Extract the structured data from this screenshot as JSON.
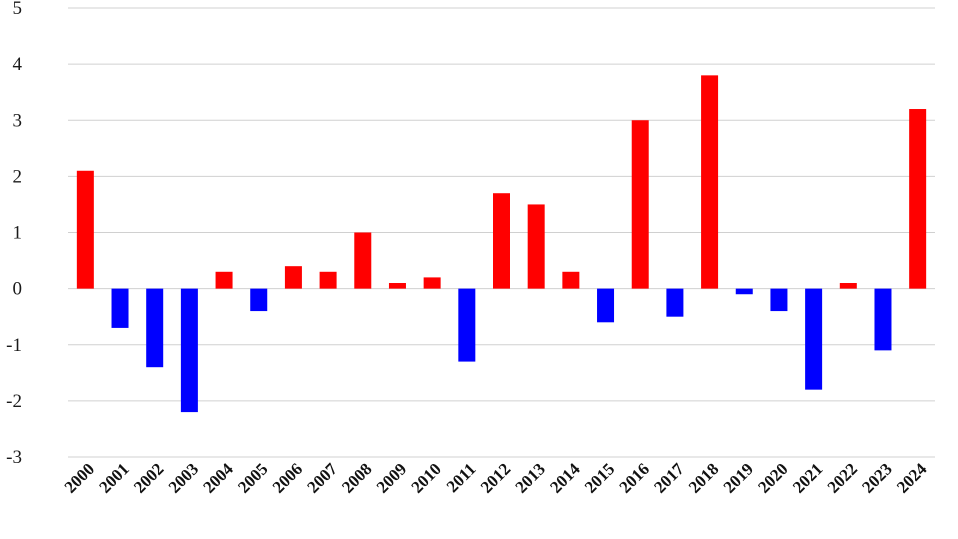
{
  "chart_data": {
    "type": "bar",
    "categories": [
      "2000",
      "2001",
      "2002",
      "2003",
      "2004",
      "2005",
      "2006",
      "2007",
      "2008",
      "2009",
      "2010",
      "2011",
      "2012",
      "2013",
      "2014",
      "2015",
      "2016",
      "2017",
      "2018",
      "2019",
      "2020",
      "2021",
      "2022",
      "2023",
      "2024"
    ],
    "values": [
      2.1,
      -0.7,
      -1.4,
      -2.2,
      0.3,
      -0.4,
      0.4,
      0.3,
      1.0,
      0.1,
      0.2,
      -1.3,
      1.7,
      1.5,
      0.3,
      -0.6,
      3.0,
      -0.5,
      3.8,
      -0.1,
      -0.4,
      -1.8,
      0.1,
      -1.1,
      3.2
    ],
    "ylim": [
      -3,
      5
    ],
    "yticks": [
      "-3",
      "-2",
      "-1",
      "0",
      "1",
      "2",
      "3",
      "4",
      "5"
    ],
    "grid": true,
    "legend": "none",
    "title": "",
    "xlabel": "",
    "ylabel": "",
    "colors": {
      "positive": "#ff0000",
      "negative": "#0000ff",
      "grid": "#d0d0d0"
    }
  }
}
